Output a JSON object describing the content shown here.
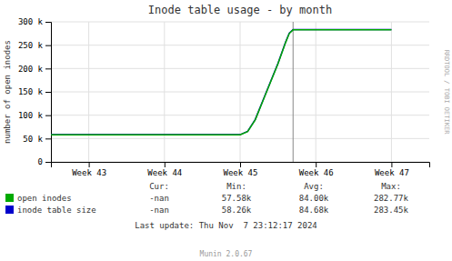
{
  "chart_data": {
    "type": "line",
    "title": "Inode table usage - by month",
    "ylabel": "number of open inodes",
    "x": [
      -0.5,
      0.0,
      0.5,
      1.0,
      1.5,
      1.8,
      2.0,
      2.1,
      2.2,
      2.3,
      2.4,
      2.5,
      2.6,
      2.65,
      2.7,
      2.8,
      3.0,
      3.5,
      4.0
    ],
    "series": [
      {
        "name": "open inodes",
        "color": "#00aa00",
        "values": [
          58000,
          58000,
          58000,
          58000,
          58000,
          58000,
          58000,
          65000,
          90000,
          130000,
          170000,
          210000,
          255000,
          275000,
          282770,
          282770,
          282770,
          282770,
          282770
        ]
      },
      {
        "name": "inode table size",
        "color": "#0000cc",
        "values": [
          58260,
          58260,
          58260,
          58260,
          58260,
          58260,
          58260,
          65500,
          91000,
          131000,
          171000,
          211000,
          256000,
          276000,
          283450,
          283450,
          283450,
          283450,
          283450
        ]
      }
    ],
    "xlim": [
      -0.5,
      4.5
    ],
    "xticks": [
      {
        "value": 0,
        "label": "Week 43"
      },
      {
        "value": 1,
        "label": "Week 44"
      },
      {
        "value": 2,
        "label": "Week 45"
      },
      {
        "value": 3,
        "label": "Week 46"
      },
      {
        "value": 4,
        "label": "Week 47"
      }
    ],
    "ylim": [
      0,
      300000
    ],
    "yticks": [
      0,
      {
        "value": 50000,
        "label": "50 k"
      },
      {
        "value": 100000,
        "label": "100 k"
      },
      {
        "value": 150000,
        "label": "150 k"
      },
      {
        "value": 200000,
        "label": "200 k"
      },
      {
        "value": 250000,
        "label": "250 k"
      },
      {
        "value": 300000,
        "label": "300 k"
      }
    ],
    "vlines": [
      2.7
    ],
    "grid": true,
    "stats": {
      "columns": [
        "Cur:",
        "Min:",
        "Avg:",
        "Max:"
      ],
      "rows": [
        [
          "-nan",
          "57.58k",
          "84.00k",
          "282.77k"
        ],
        [
          "-nan",
          "58.26k",
          "84.68k",
          "283.45k"
        ]
      ]
    },
    "annotations": [
      "Last update: Thu Nov  7 23:12:17 2024",
      "Munin 2.0.67",
      "RRDTOOL / TOBI OETIKER"
    ]
  }
}
